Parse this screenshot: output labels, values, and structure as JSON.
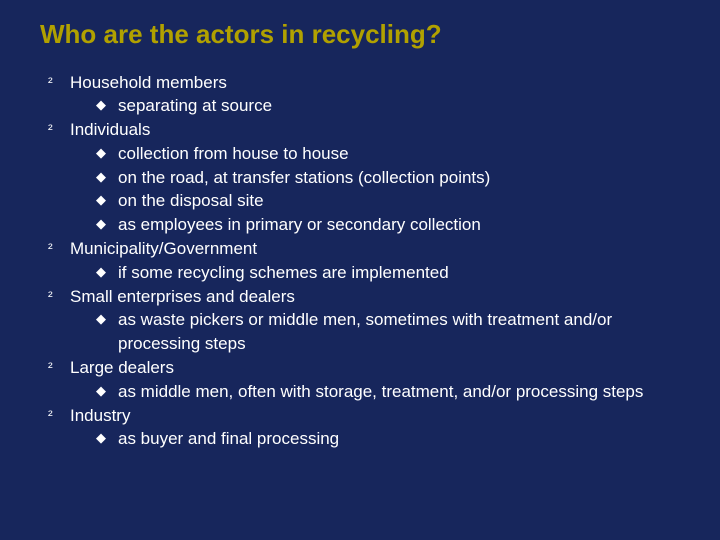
{
  "background_color": "#17265c",
  "text_color": "#ffffff",
  "title_color": "#b1a100",
  "title_font": "Comic Sans MS",
  "body_font": "Verdana",
  "title_fontsize": 26,
  "body_fontsize": 17,
  "bullets": {
    "level1_glyph": "²",
    "level2_glyph": "◆"
  },
  "title": "Who are the actors in recycling?",
  "items": [
    {
      "label": "Household members",
      "sub": [
        "separating at source"
      ]
    },
    {
      "label": "Individuals",
      "sub": [
        "collection from house to house",
        "on the road, at transfer stations (collection points)",
        "on the disposal site",
        "as employees in primary or secondary collection"
      ]
    },
    {
      "label": "Municipality/Government",
      "sub": [
        "if some recycling schemes are implemented"
      ]
    },
    {
      "label": "Small enterprises and dealers",
      "sub": [
        "as waste pickers or middle men, sometimes with treatment and/or processing steps"
      ]
    },
    {
      "label": "Large dealers",
      "sub": [
        "as middle men, often with storage, treatment, and/or processing steps"
      ]
    },
    {
      "label": "Industry",
      "sub": [
        "as buyer and final processing"
      ]
    }
  ]
}
